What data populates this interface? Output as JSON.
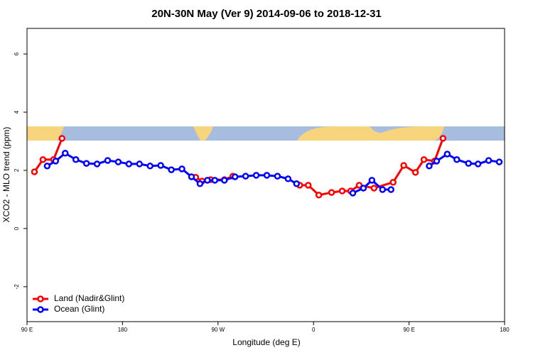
{
  "chart_data": {
    "type": "line",
    "title": "20N-30N May (Ver 9)   2014-09-06 to 2018-12-31",
    "x_label": "Longitude (deg E)",
    "y_label": "XCO2 - MLO trend (ppm)",
    "xlim": [
      90,
      540
    ],
    "ylim": [
      -3.2,
      6.88
    ],
    "xticks": [
      {
        "value": 90,
        "label": "90 E"
      },
      {
        "value": 180,
        "label": "180"
      },
      {
        "value": 270,
        "label": "90 W"
      },
      {
        "value": 360,
        "label": "0"
      },
      {
        "value": 450,
        "label": "90 E"
      },
      {
        "value": 540,
        "label": "180"
      }
    ],
    "yticks": [
      -2,
      0,
      2,
      4,
      6
    ],
    "legend": "bottom-left",
    "series": [
      {
        "name": "Land (Nadir&Glint)",
        "color": "#ff0000",
        "x": [
          97,
          105,
          115,
          123,
          186,
          249,
          255,
          263,
          276,
          284,
          315,
          347,
          355,
          365,
          377,
          387,
          395,
          403,
          417,
          435,
          445,
          456,
          464,
          474,
          482
        ],
        "values": [
          1.95,
          2.37,
          2.37,
          3.1,
          null,
          1.76,
          1.63,
          1.68,
          1.68,
          1.8,
          null,
          1.49,
          1.49,
          1.15,
          1.24,
          1.29,
          1.29,
          1.49,
          1.39,
          1.59,
          2.17,
          1.93,
          2.37,
          2.32,
          3.1
        ]
      },
      {
        "name": "Ocean (Glint)",
        "color": "#0000ff",
        "x": [
          109,
          117,
          126,
          136,
          146,
          156,
          166,
          176,
          186,
          196,
          206,
          216,
          226,
          236,
          245,
          253,
          260,
          267,
          276,
          286,
          296,
          306,
          316,
          326,
          336,
          344,
          370,
          397,
          407,
          415,
          425,
          433,
          451,
          469,
          476,
          486,
          495,
          506,
          515,
          525,
          535
        ],
        "values": [
          2.15,
          2.32,
          2.59,
          2.37,
          2.24,
          2.22,
          2.34,
          2.29,
          2.22,
          2.22,
          2.15,
          2.17,
          2.02,
          2.05,
          1.78,
          1.54,
          1.66,
          1.66,
          1.66,
          1.78,
          1.8,
          1.83,
          1.83,
          1.8,
          1.71,
          1.54,
          null,
          1.22,
          1.39,
          1.66,
          1.34,
          1.34,
          null,
          2.15,
          2.32,
          2.56,
          2.37,
          2.24,
          2.22,
          2.34,
          2.29
        ]
      }
    ]
  }
}
